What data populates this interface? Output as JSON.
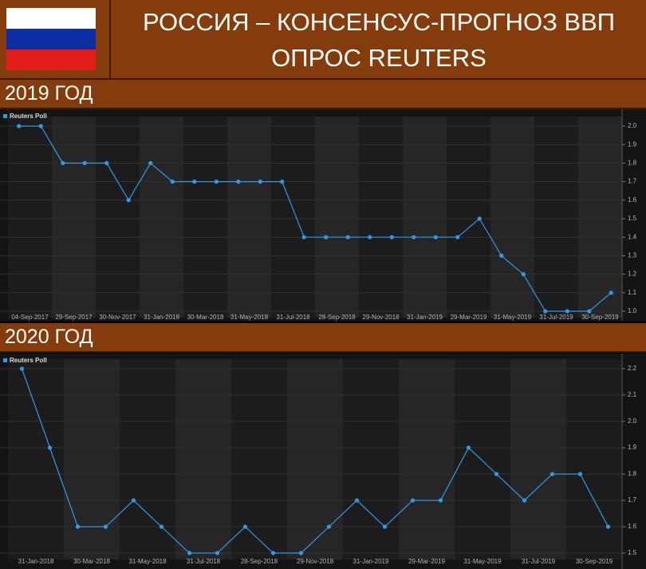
{
  "header": {
    "title": [
      "РОССИЯ – КОНСЕНСУС-ПРОГНОЗ ВВП",
      "ОПРОС REUTERS"
    ]
  },
  "sections": [
    "2019 ГОД",
    "2020 ГОД"
  ],
  "chart_data": [
    {
      "type": "line",
      "categories": [
        "04-Sep-2017",
        null,
        "29-Sep-2017",
        null,
        "30-Nov-2017",
        null,
        "31-Jan-2018",
        null,
        "30-Mar-2018",
        null,
        "31-May-2018",
        null,
        "31-Jul-2018",
        null,
        "28-Sep-2018",
        null,
        "29-Nov-2018",
        null,
        "31-Jan-2019",
        null,
        "29-Mar-2019",
        null,
        "31-May-2019",
        null,
        "31-Jul-2019",
        null,
        "30-Sep-2019",
        null
      ],
      "series": [
        {
          "name": "Reuters Poll",
          "color": "#2f9be8",
          "values": [
            2.0,
            2.0,
            1.8,
            1.8,
            1.8,
            1.6,
            1.8,
            1.7,
            1.7,
            1.7,
            1.7,
            1.7,
            1.7,
            1.4,
            1.4,
            1.4,
            1.4,
            1.4,
            1.4,
            1.4,
            1.4,
            1.5,
            1.3,
            1.2,
            1.0,
            1.0,
            1.0,
            1.1
          ]
        }
      ],
      "ylim": [
        1.0,
        2.0
      ],
      "yticks": [
        {
          "value": 1.0,
          "label": "1.0"
        },
        1.1,
        1.2,
        1.3,
        1.4,
        1.5,
        1.6,
        1.7,
        1.8,
        1.9,
        {
          "value": 2.0,
          "label": "2.0"
        }
      ],
      "grid": true,
      "legend": "top-left"
    },
    {
      "type": "line",
      "categories": [
        "31-Jan-2018",
        null,
        "30-Mar-2018",
        null,
        "31-May-2018",
        null,
        "31-Jul-2018",
        null,
        "28-Sep-2018",
        null,
        "29-Nov-2018",
        null,
        "31-Jan-2019",
        null,
        "29-Mar-2019",
        null,
        "31-May-2019",
        null,
        "31-Jul-2019",
        null,
        "30-Sep-2019",
        null
      ],
      "series": [
        {
          "name": "Reuters Poll",
          "color": "#2f9be8",
          "values": [
            2.2,
            1.9,
            1.6,
            1.6,
            1.7,
            1.6,
            1.5,
            1.5,
            1.6,
            1.5,
            1.5,
            1.6,
            1.7,
            1.6,
            1.7,
            1.7,
            1.9,
            1.8,
            1.7,
            1.8,
            1.8,
            1.6
          ]
        }
      ],
      "ylim": [
        1.5,
        2.2
      ],
      "yticks": [
        1.5,
        1.6,
        1.7,
        1.8,
        1.9,
        {
          "value": 2.0,
          "label": "2.0"
        },
        2.1,
        2.2
      ],
      "grid": true,
      "legend": "top-left"
    }
  ]
}
